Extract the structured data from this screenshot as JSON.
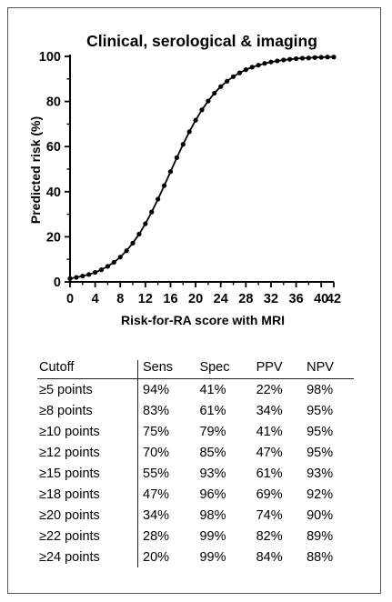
{
  "chart_data": {
    "type": "line",
    "title": "Clinical, serological & imaging",
    "xlabel": "Risk-for-RA score with MRI",
    "ylabel": "Predicted risk (%)",
    "xlim": [
      0,
      42
    ],
    "ylim": [
      0,
      100
    ],
    "xticks": [
      0,
      4,
      8,
      12,
      16,
      20,
      24,
      28,
      32,
      36,
      40,
      42
    ],
    "yticks": [
      0,
      20,
      40,
      60,
      80,
      100
    ],
    "grid": false,
    "series": [
      {
        "x": [
          0,
          1,
          2,
          3,
          4,
          5,
          6,
          7,
          8,
          9,
          10,
          11,
          12,
          13,
          14,
          15,
          16,
          17,
          18,
          19,
          20,
          21,
          22,
          23,
          24,
          25,
          26,
          27,
          28,
          29,
          30,
          31,
          32,
          33,
          34,
          35,
          36,
          37,
          38,
          39,
          40,
          41,
          42
        ],
        "values": [
          1.5,
          2.0,
          2.6,
          3.3,
          4.2,
          5.4,
          6.9,
          8.7,
          11.0,
          13.8,
          17.2,
          21.2,
          25.8,
          31.0,
          36.7,
          42.7,
          48.9,
          55.1,
          61.0,
          66.6,
          71.7,
          76.3,
          80.2,
          83.7,
          86.6,
          89.0,
          91.0,
          92.7,
          94.1,
          95.2,
          96.1,
          96.9,
          97.5,
          98.0,
          98.4,
          98.7,
          99.0,
          99.2,
          99.3,
          99.5,
          99.6,
          99.7,
          99.7
        ]
      }
    ]
  },
  "table": {
    "headers": [
      "Cutoff",
      "Sens",
      "Spec",
      "PPV",
      "NPV"
    ],
    "rows": [
      [
        "≥5 points",
        "94%",
        "41%",
        "22%",
        "98%"
      ],
      [
        "≥8 points",
        "83%",
        "61%",
        "34%",
        "95%"
      ],
      [
        "≥10 points",
        "75%",
        "79%",
        "41%",
        "95%"
      ],
      [
        "≥12 points",
        "70%",
        "85%",
        "47%",
        "95%"
      ],
      [
        "≥15 points",
        "55%",
        "93%",
        "61%",
        "93%"
      ],
      [
        "≥18 points",
        "47%",
        "96%",
        "69%",
        "92%"
      ],
      [
        "≥20 points",
        "34%",
        "98%",
        "74%",
        "90%"
      ],
      [
        "≥22 points",
        "28%",
        "99%",
        "82%",
        "89%"
      ],
      [
        "≥24 points",
        "20%",
        "99%",
        "84%",
        "88%"
      ]
    ]
  }
}
